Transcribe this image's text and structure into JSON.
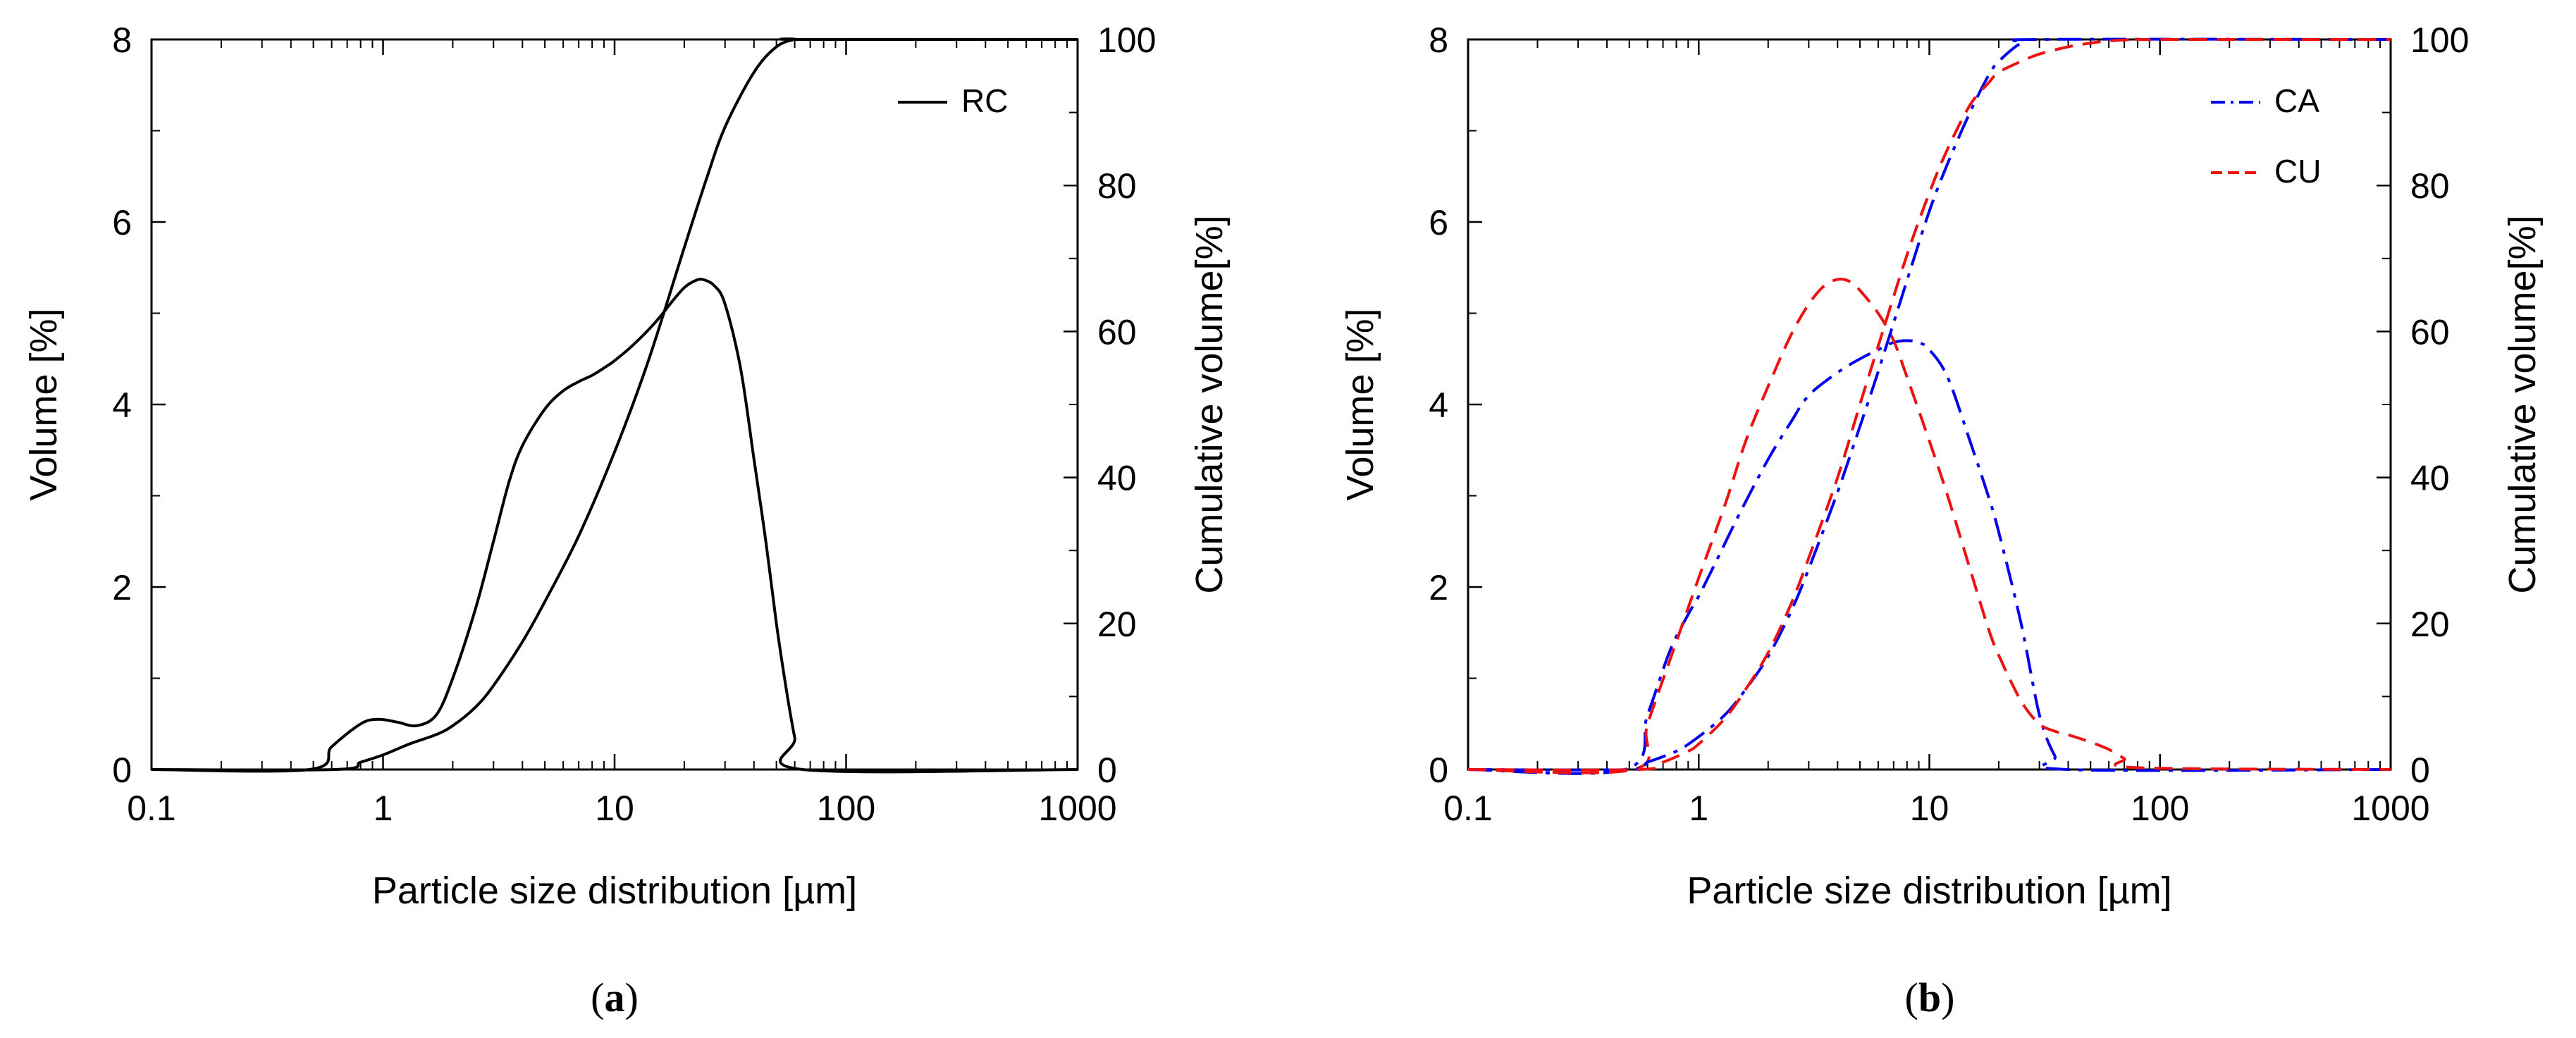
{
  "chart_data": [
    {
      "panel": "a",
      "panel_label": {
        "open": "(",
        "letter": "a",
        "close": ")"
      },
      "type": "line",
      "xlabel": "Particle size distribution [µm]",
      "ylabel": "Volume [%]",
      "y2label": "Cumulative volume[%]",
      "xscale": "log",
      "xlim": [
        0.1,
        1000
      ],
      "ylim": [
        0,
        8
      ],
      "y2lim": [
        0,
        100
      ],
      "xticks": [
        0.1,
        1,
        10,
        100,
        1000
      ],
      "xtick_labels": [
        "0.1",
        "1",
        "10",
        "100",
        "1000"
      ],
      "yticks": [
        0,
        2,
        4,
        6,
        8
      ],
      "ytick_labels": [
        "0",
        "2",
        "4",
        "6",
        "8"
      ],
      "y2ticks": [
        0,
        20,
        40,
        60,
        80,
        100
      ],
      "y2tick_labels": [
        "0",
        "20",
        "40",
        "60",
        "80",
        "100"
      ],
      "legend": {
        "position": "top-right",
        "entries": [
          {
            "label": "RC",
            "color": "#000000",
            "style": "solid"
          }
        ]
      },
      "series": [
        {
          "name": "RC",
          "kind": "volume",
          "axis": "left",
          "color": "#000000",
          "style": "solid",
          "x": [
            0.1,
            0.48,
            0.6,
            0.8,
            0.95,
            1.15,
            1.4,
            1.7,
            2.0,
            2.5,
            3.0,
            3.5,
            4.0,
            5.0,
            6.0,
            7.0,
            8.0,
            9.0,
            10.0,
            12.0,
            15.0,
            18.0,
            20.0,
            22.0,
            24.0,
            27.0,
            30.0,
            35.0,
            40.0,
            45.0,
            50.0,
            55.0,
            60.0,
            65.0,
            1000
          ],
          "values": [
            0,
            0,
            0.25,
            0.5,
            0.55,
            0.52,
            0.48,
            0.6,
            1.0,
            1.75,
            2.5,
            3.15,
            3.55,
            3.95,
            4.15,
            4.25,
            4.32,
            4.4,
            4.48,
            4.65,
            4.9,
            5.15,
            5.28,
            5.35,
            5.37,
            5.3,
            5.1,
            4.4,
            3.4,
            2.5,
            1.6,
            0.9,
            0.35,
            0.0,
            0
          ]
        },
        {
          "name": "RC cumulative",
          "kind": "cumulative",
          "axis": "right",
          "color": "#000000",
          "style": "solid",
          "x": [
            0.1,
            0.62,
            0.8,
            1.0,
            1.3,
            1.7,
            2.0,
            2.5,
            3.0,
            4.0,
            5.0,
            7.0,
            10.0,
            14.0,
            20.0,
            25.0,
            30.0,
            40.0,
            50.0,
            60.0,
            65.0,
            1000
          ],
          "values": [
            0,
            0,
            1.0,
            2.0,
            3.5,
            4.8,
            6.0,
            8.5,
            11.5,
            17.5,
            23.0,
            32.0,
            43.5,
            56.0,
            71.5,
            81.0,
            88.0,
            95.5,
            99.0,
            100,
            100,
            100
          ]
        }
      ]
    },
    {
      "panel": "b",
      "panel_label": {
        "open": "(",
        "letter": "b",
        "close": ")"
      },
      "type": "line",
      "xlabel": "Particle size distribution [µm]",
      "ylabel": "Volume [%]",
      "y2label": "Cumulative volume[%]",
      "xscale": "log",
      "xlim": [
        0.1,
        1000
      ],
      "ylim": [
        0,
        8
      ],
      "y2lim": [
        0,
        100
      ],
      "xticks": [
        0.1,
        1,
        10,
        100,
        1000
      ],
      "xtick_labels": [
        "0.1",
        "1",
        "10",
        "100",
        "1000"
      ],
      "yticks": [
        0,
        2,
        4,
        6,
        8
      ],
      "ytick_labels": [
        "0",
        "2",
        "4",
        "6",
        "8"
      ],
      "y2ticks": [
        0,
        20,
        40,
        60,
        80,
        100
      ],
      "y2tick_labels": [
        "0",
        "20",
        "40",
        "60",
        "80",
        "100"
      ],
      "legend": {
        "position": "top-right",
        "entries": [
          {
            "label": "CA",
            "color": "#0000ee",
            "style": "dashdot"
          },
          {
            "label": "CU",
            "color": "#ee1111",
            "style": "dashed"
          }
        ]
      },
      "series": [
        {
          "name": "CA",
          "kind": "volume",
          "axis": "left",
          "color": "#0000ee",
          "style": "dashdot",
          "x": [
            0.1,
            0.48,
            0.6,
            0.75,
            0.9,
            1.0,
            1.2,
            1.5,
            2.0,
            2.5,
            3.0,
            4.0,
            5.0,
            6.0,
            7.0,
            8.0,
            9.0,
            10.0,
            12.0,
            15.0,
            18.0,
            20.0,
            25.0,
            30.0,
            35.0,
            40.0,
            1000
          ],
          "values": [
            0,
            0,
            0.6,
            1.3,
            1.7,
            1.9,
            2.3,
            2.8,
            3.4,
            3.8,
            4.1,
            4.35,
            4.5,
            4.6,
            4.68,
            4.7,
            4.68,
            4.6,
            4.3,
            3.6,
            3.0,
            2.6,
            1.6,
            0.6,
            0.15,
            0,
            0
          ]
        },
        {
          "name": "CU",
          "kind": "volume",
          "axis": "left",
          "color": "#ee1111",
          "style": "dashed",
          "x": [
            0.1,
            0.52,
            0.6,
            0.8,
            1.0,
            1.3,
            1.6,
            2.0,
            2.5,
            3.0,
            3.5,
            4.0,
            4.5,
            5.0,
            6.0,
            7.0,
            8.0,
            10.0,
            12.0,
            15.0,
            18.0,
            20.0,
            25.0,
            30.0,
            35.0,
            40.0,
            50.0,
            60.0,
            70.0,
            80.0,
            1000
          ],
          "values": [
            0,
            0,
            0.5,
            1.4,
            2.1,
            2.9,
            3.6,
            4.2,
            4.75,
            5.1,
            5.3,
            5.37,
            5.35,
            5.25,
            5.0,
            4.7,
            4.3,
            3.6,
            3.0,
            2.2,
            1.55,
            1.25,
            0.75,
            0.5,
            0.42,
            0.38,
            0.3,
            0.22,
            0.12,
            0.02,
            0
          ]
        },
        {
          "name": "CA cumulative",
          "kind": "cumulative",
          "axis": "right",
          "color": "#0000ee",
          "style": "dashdot",
          "x": [
            0.1,
            0.5,
            0.6,
            0.8,
            1.0,
            1.3,
            1.6,
            2.0,
            2.5,
            3.0,
            4.0,
            5.0,
            6.0,
            8.0,
            10.0,
            12.0,
            15.0,
            18.0,
            20.0,
            25.0,
            30.0,
            1000
          ],
          "values": [
            0,
            0,
            1.0,
            2.5,
            4.5,
            7.5,
            11.0,
            15.5,
            21.5,
            27.5,
            38.0,
            47.0,
            54.5,
            67.0,
            76.5,
            83.0,
            90.0,
            95.0,
            97.0,
            99.5,
            100,
            100
          ]
        },
        {
          "name": "CU cumulative",
          "kind": "cumulative",
          "axis": "right",
          "color": "#ee1111",
          "style": "dashed",
          "x": [
            0.1,
            0.55,
            0.7,
            0.9,
            1.0,
            1.3,
            1.6,
            2.0,
            2.5,
            3.0,
            4.0,
            5.0,
            6.0,
            8.0,
            10.0,
            12.0,
            15.0,
            18.0,
            20.0,
            25.0,
            30.0,
            40.0,
            50.0,
            60.0,
            80.0,
            100.0,
            1000
          ],
          "values": [
            0,
            0,
            1.0,
            2.5,
            3.5,
            7.0,
            11.0,
            16.0,
            22.5,
            29.0,
            40.0,
            50.0,
            58.0,
            70.5,
            79.0,
            85.0,
            91.0,
            94.0,
            95.5,
            97.0,
            98.0,
            99.0,
            99.5,
            99.8,
            100,
            100,
            100
          ]
        }
      ]
    }
  ]
}
